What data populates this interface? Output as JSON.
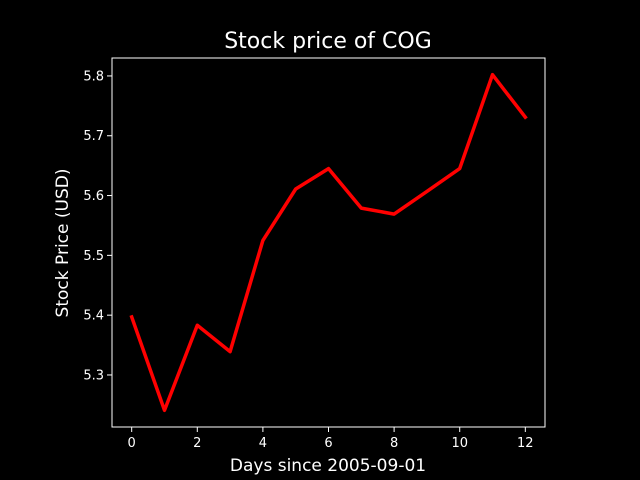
{
  "chart_data": {
    "type": "line",
    "title": "Stock price of COG",
    "xlabel": "Days since 2005-09-01",
    "ylabel": "Stock Price (USD)",
    "x": [
      0,
      1,
      2,
      3,
      4,
      5,
      6,
      7,
      8,
      9,
      10,
      11,
      12
    ],
    "series": [
      {
        "values": [
          5.397,
          5.241,
          5.383,
          5.339,
          5.525,
          5.611,
          5.645,
          5.579,
          5.569,
          5.607,
          5.645,
          5.802,
          5.731
        ],
        "color": "#ff0000"
      }
    ],
    "xlim": [
      -0.6,
      12.6
    ],
    "ylim": [
      5.213,
      5.83
    ],
    "xticks": [
      0,
      2,
      4,
      6,
      8,
      10,
      12
    ],
    "xtick_labels": [
      "0",
      "2",
      "4",
      "6",
      "8",
      "10",
      "12"
    ],
    "yticks": [
      5.3,
      5.4,
      5.5,
      5.6,
      5.7,
      5.8
    ],
    "ytick_labels": [
      "5.3",
      "5.4",
      "5.5",
      "5.6",
      "5.7",
      "5.8"
    ],
    "grid": false,
    "background": "#000000",
    "axes_color": "#ffffff",
    "text_color": "#ffffff"
  }
}
